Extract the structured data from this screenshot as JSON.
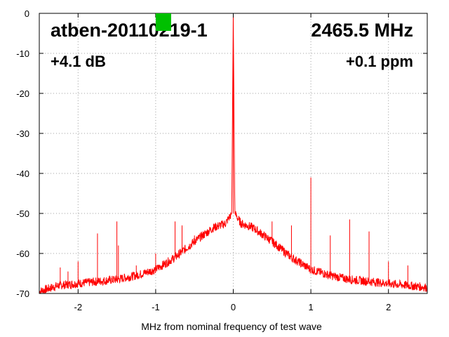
{
  "chart_data": {
    "type": "line",
    "title": "",
    "xlabel": "MHz from nominal frequency of test wave",
    "ylabel": "",
    "xlim": [
      -2.5,
      2.5
    ],
    "ylim": [
      -70,
      0
    ],
    "xticks": [
      -2,
      -1,
      0,
      1,
      2
    ],
    "yticks": [
      0,
      -10,
      -20,
      -30,
      -40,
      -50,
      -60,
      -70
    ],
    "grid": true,
    "annotations": {
      "top_left": "atben-20110219-1",
      "top_right": "2465.5 MHz",
      "second_left": "+4.1 dB",
      "second_right": "+0.1 ppm"
    },
    "marker_color": "#00c000",
    "marker_x": -0.9,
    "series": [
      {
        "color": "#ff0000",
        "x": [
          -2.5,
          -2.25,
          -2.0,
          -1.75,
          -1.5,
          -1.25,
          -1.0,
          -0.75,
          -0.5,
          -0.25,
          -0.1,
          -0.02,
          0.0,
          0.02,
          0.1,
          0.25,
          0.5,
          0.75,
          1.0,
          1.25,
          1.5,
          1.75,
          2.0,
          2.25,
          2.5
        ],
        "y": [
          -69.5,
          -68.0,
          -67.5,
          -67.0,
          -66.5,
          -65.5,
          -64.0,
          -61.0,
          -57.0,
          -53.5,
          -52.5,
          -50.0,
          0.0,
          -50.0,
          -52.5,
          -53.5,
          -57.0,
          -61.0,
          -64.0,
          -65.5,
          -66.5,
          -67.0,
          -67.5,
          -68.0,
          -68.5
        ]
      }
    ],
    "spurs": {
      "x": [
        -2.23,
        -2.13,
        -2.0,
        -1.75,
        -1.5,
        -1.48,
        -1.25,
        -1.0,
        -0.75,
        -0.66,
        -0.5,
        -0.25,
        0.25,
        0.5,
        0.75,
        1.0,
        1.25,
        1.5,
        1.75,
        2.0,
        2.25
      ],
      "y": [
        -63.5,
        -64.5,
        -62.0,
        -55.0,
        -52.0,
        -58.0,
        -63.0,
        -60.0,
        -52.0,
        -53.0,
        -55.5,
        -53.5,
        -54.5,
        -52.0,
        -53.0,
        -41.0,
        -55.5,
        -51.5,
        -54.5,
        -62.0,
        -63.0
      ]
    }
  }
}
